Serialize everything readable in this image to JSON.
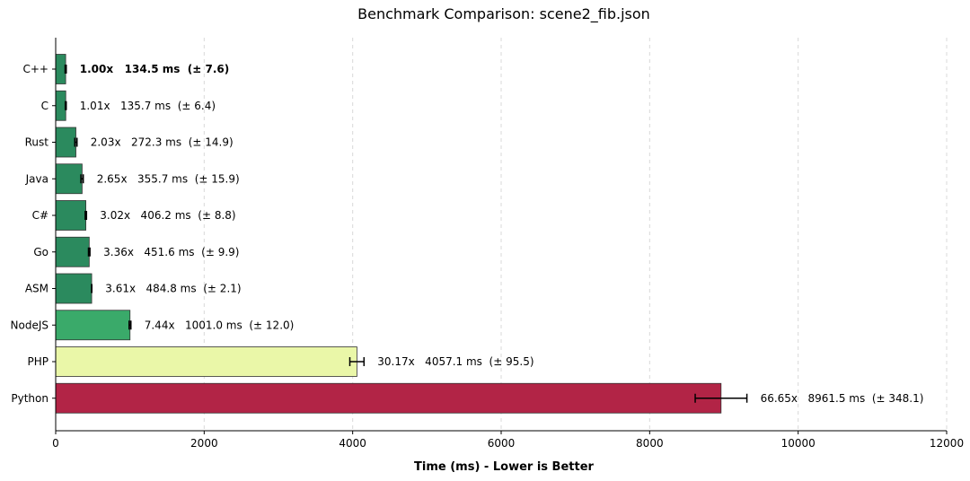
{
  "chart_data": {
    "type": "bar",
    "orientation": "horizontal",
    "title": "Benchmark Comparison: scene2_fib.json",
    "xlabel": "Time (ms) - Lower is Better",
    "ylabel": "",
    "xlim": [
      0,
      12000
    ],
    "xticks": [
      0,
      2000,
      4000,
      6000,
      8000,
      10000,
      12000
    ],
    "grid": "vertical-dashed",
    "categories": [
      "C++",
      "C",
      "Rust",
      "Java",
      "C#",
      "Go",
      "ASM",
      "NodeJS",
      "PHP",
      "Python"
    ],
    "values": [
      134.5,
      135.7,
      272.3,
      355.7,
      406.2,
      451.6,
      484.8,
      1001.0,
      4057.1,
      8961.5
    ],
    "errors": [
      7.6,
      6.4,
      14.9,
      15.9,
      8.8,
      9.9,
      2.1,
      12.0,
      95.5,
      348.1
    ],
    "colors": [
      "#2b8a5e",
      "#2b8a5e",
      "#2b8a5e",
      "#2b8a5e",
      "#2b8a5e",
      "#2b8a5e",
      "#2b8a5e",
      "#3aaa6a",
      "#eaf7a8",
      "#b22446"
    ],
    "bar_labels": [
      "1.00x   134.5 ms  (± 7.6)",
      "1.01x   135.7 ms  (± 6.4)",
      "2.03x   272.3 ms  (± 14.9)",
      "2.65x   355.7 ms  (± 15.9)",
      "3.02x   406.2 ms  (± 8.8)",
      "3.36x   451.6 ms  (± 9.9)",
      "3.61x   484.8 ms  (± 2.1)",
      "7.44x   1001.0 ms  (± 12.0)",
      "30.17x   4057.1 ms  (± 95.5)",
      "66.65x   8961.5 ms  (± 348.1)"
    ],
    "bold_labels": [
      true,
      false,
      false,
      false,
      false,
      false,
      false,
      false,
      false,
      false
    ]
  }
}
